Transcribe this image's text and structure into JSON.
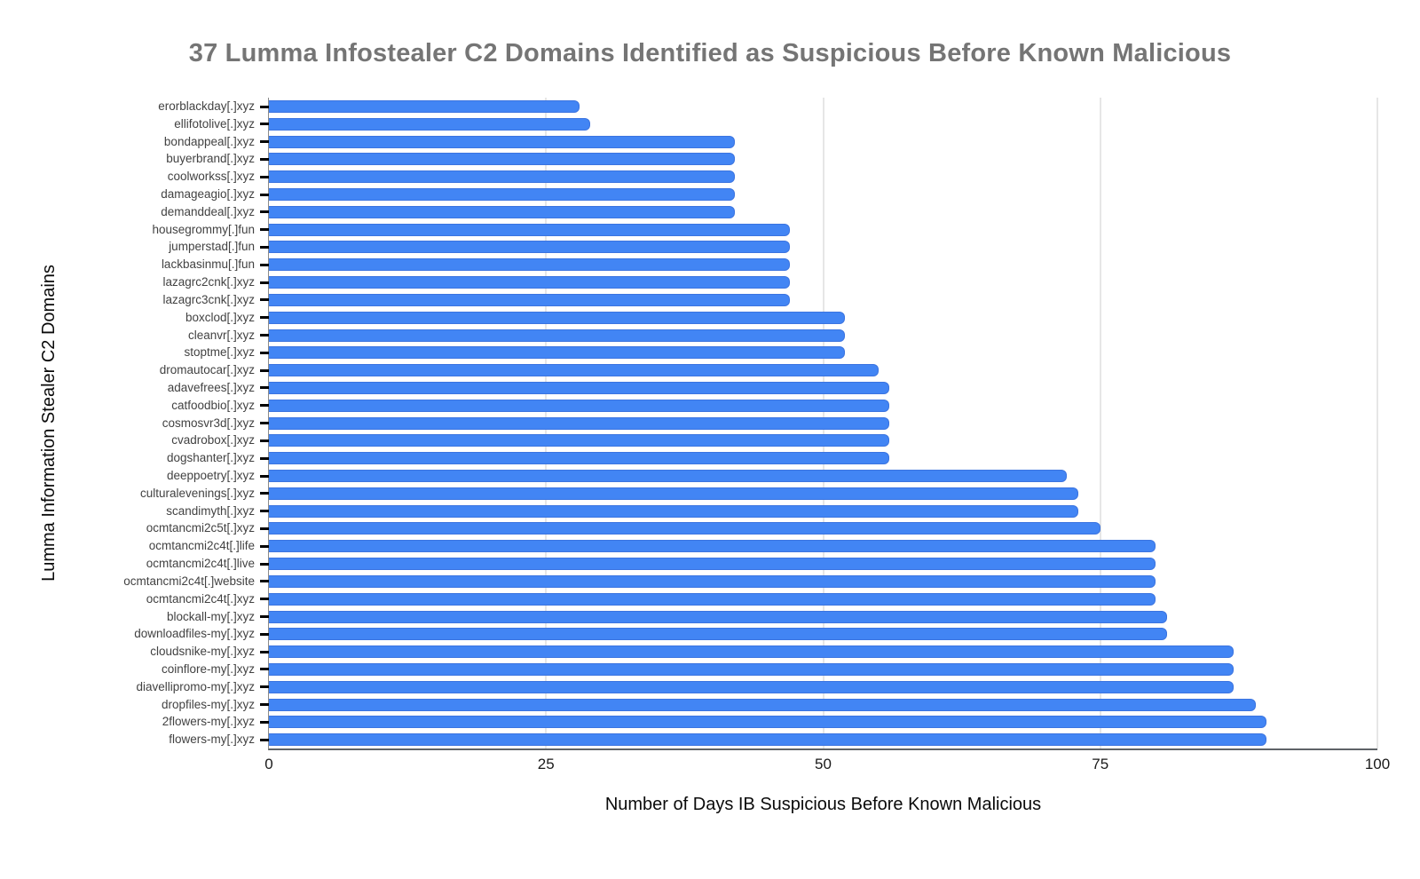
{
  "title": "37 Lumma Infostealer C2 Domains Identified as Suspicious Before Known Malicious",
  "colors": {
    "bar_fill": "#4285f4",
    "bar_border": "#3b74e0",
    "title_text": "#757575",
    "gridline": "#cccccc",
    "axis_line": "#5f6368",
    "tick_dash": "#000000",
    "category_label": "#424242"
  },
  "chart_data": {
    "type": "bar",
    "orientation": "horizontal",
    "title": "37 Lumma Infostealer C2 Domains Identified as Suspicious Before Known Malicious",
    "xlabel": "Number of Days IB Suspicious Before Known Malicious",
    "ylabel": "Lumma Information Stealer C2 Domains",
    "xlim": [
      0,
      100
    ],
    "x_ticks": [
      0,
      25,
      50,
      75,
      100
    ],
    "grid": true,
    "legend": "none",
    "categories": [
      "erorblackday[.]xyz",
      "ellifotolive[.]xyz",
      "bondappeal[.]xyz",
      "buyerbrand[.]xyz",
      "coolworkss[.]xyz",
      "damageagio[.]xyz",
      "demanddeal[.]xyz",
      "housegrommy[.]fun",
      "jumperstad[.]fun",
      "lackbasinmu[.]fun",
      "lazagrc2cnk[.]xyz",
      "lazagrc3cnk[.]xyz",
      "boxclod[.]xyz",
      "cleanvr[.]xyz",
      "stoptme[.]xyz",
      "dromautocar[.]xyz",
      "adavefrees[.]xyz",
      "catfoodbio[.]xyz",
      "cosmosvr3d[.]xyz",
      "cvadrobox[.]xyz",
      "dogshanter[.]xyz",
      "deeppoetry[.]xyz",
      "culturalevenings[.]xyz",
      "scandimyth[.]xyz",
      "ocmtancmi2c5t[.]xyz",
      "ocmtancmi2c4t[.]life",
      "ocmtancmi2c4t[.]live",
      "ocmtancmi2c4t[.]website",
      "ocmtancmi2c4t[.]xyz",
      "blockall-my[.]xyz",
      "downloadfiles-my[.]xyz",
      "cloudsnike-my[.]xyz",
      "coinflore-my[.]xyz",
      "diavellipromo-my[.]xyz",
      "dropfiles-my[.]xyz",
      "2flowers-my[.]xyz",
      "flowers-my[.]xyz"
    ],
    "values": [
      28,
      29,
      42,
      42,
      42,
      42,
      42,
      47,
      47,
      47,
      47,
      47,
      52,
      52,
      52,
      55,
      56,
      56,
      56,
      56,
      56,
      72,
      73,
      73,
      75,
      80,
      80,
      80,
      80,
      81,
      81,
      87,
      87,
      87,
      89,
      90,
      90
    ]
  }
}
